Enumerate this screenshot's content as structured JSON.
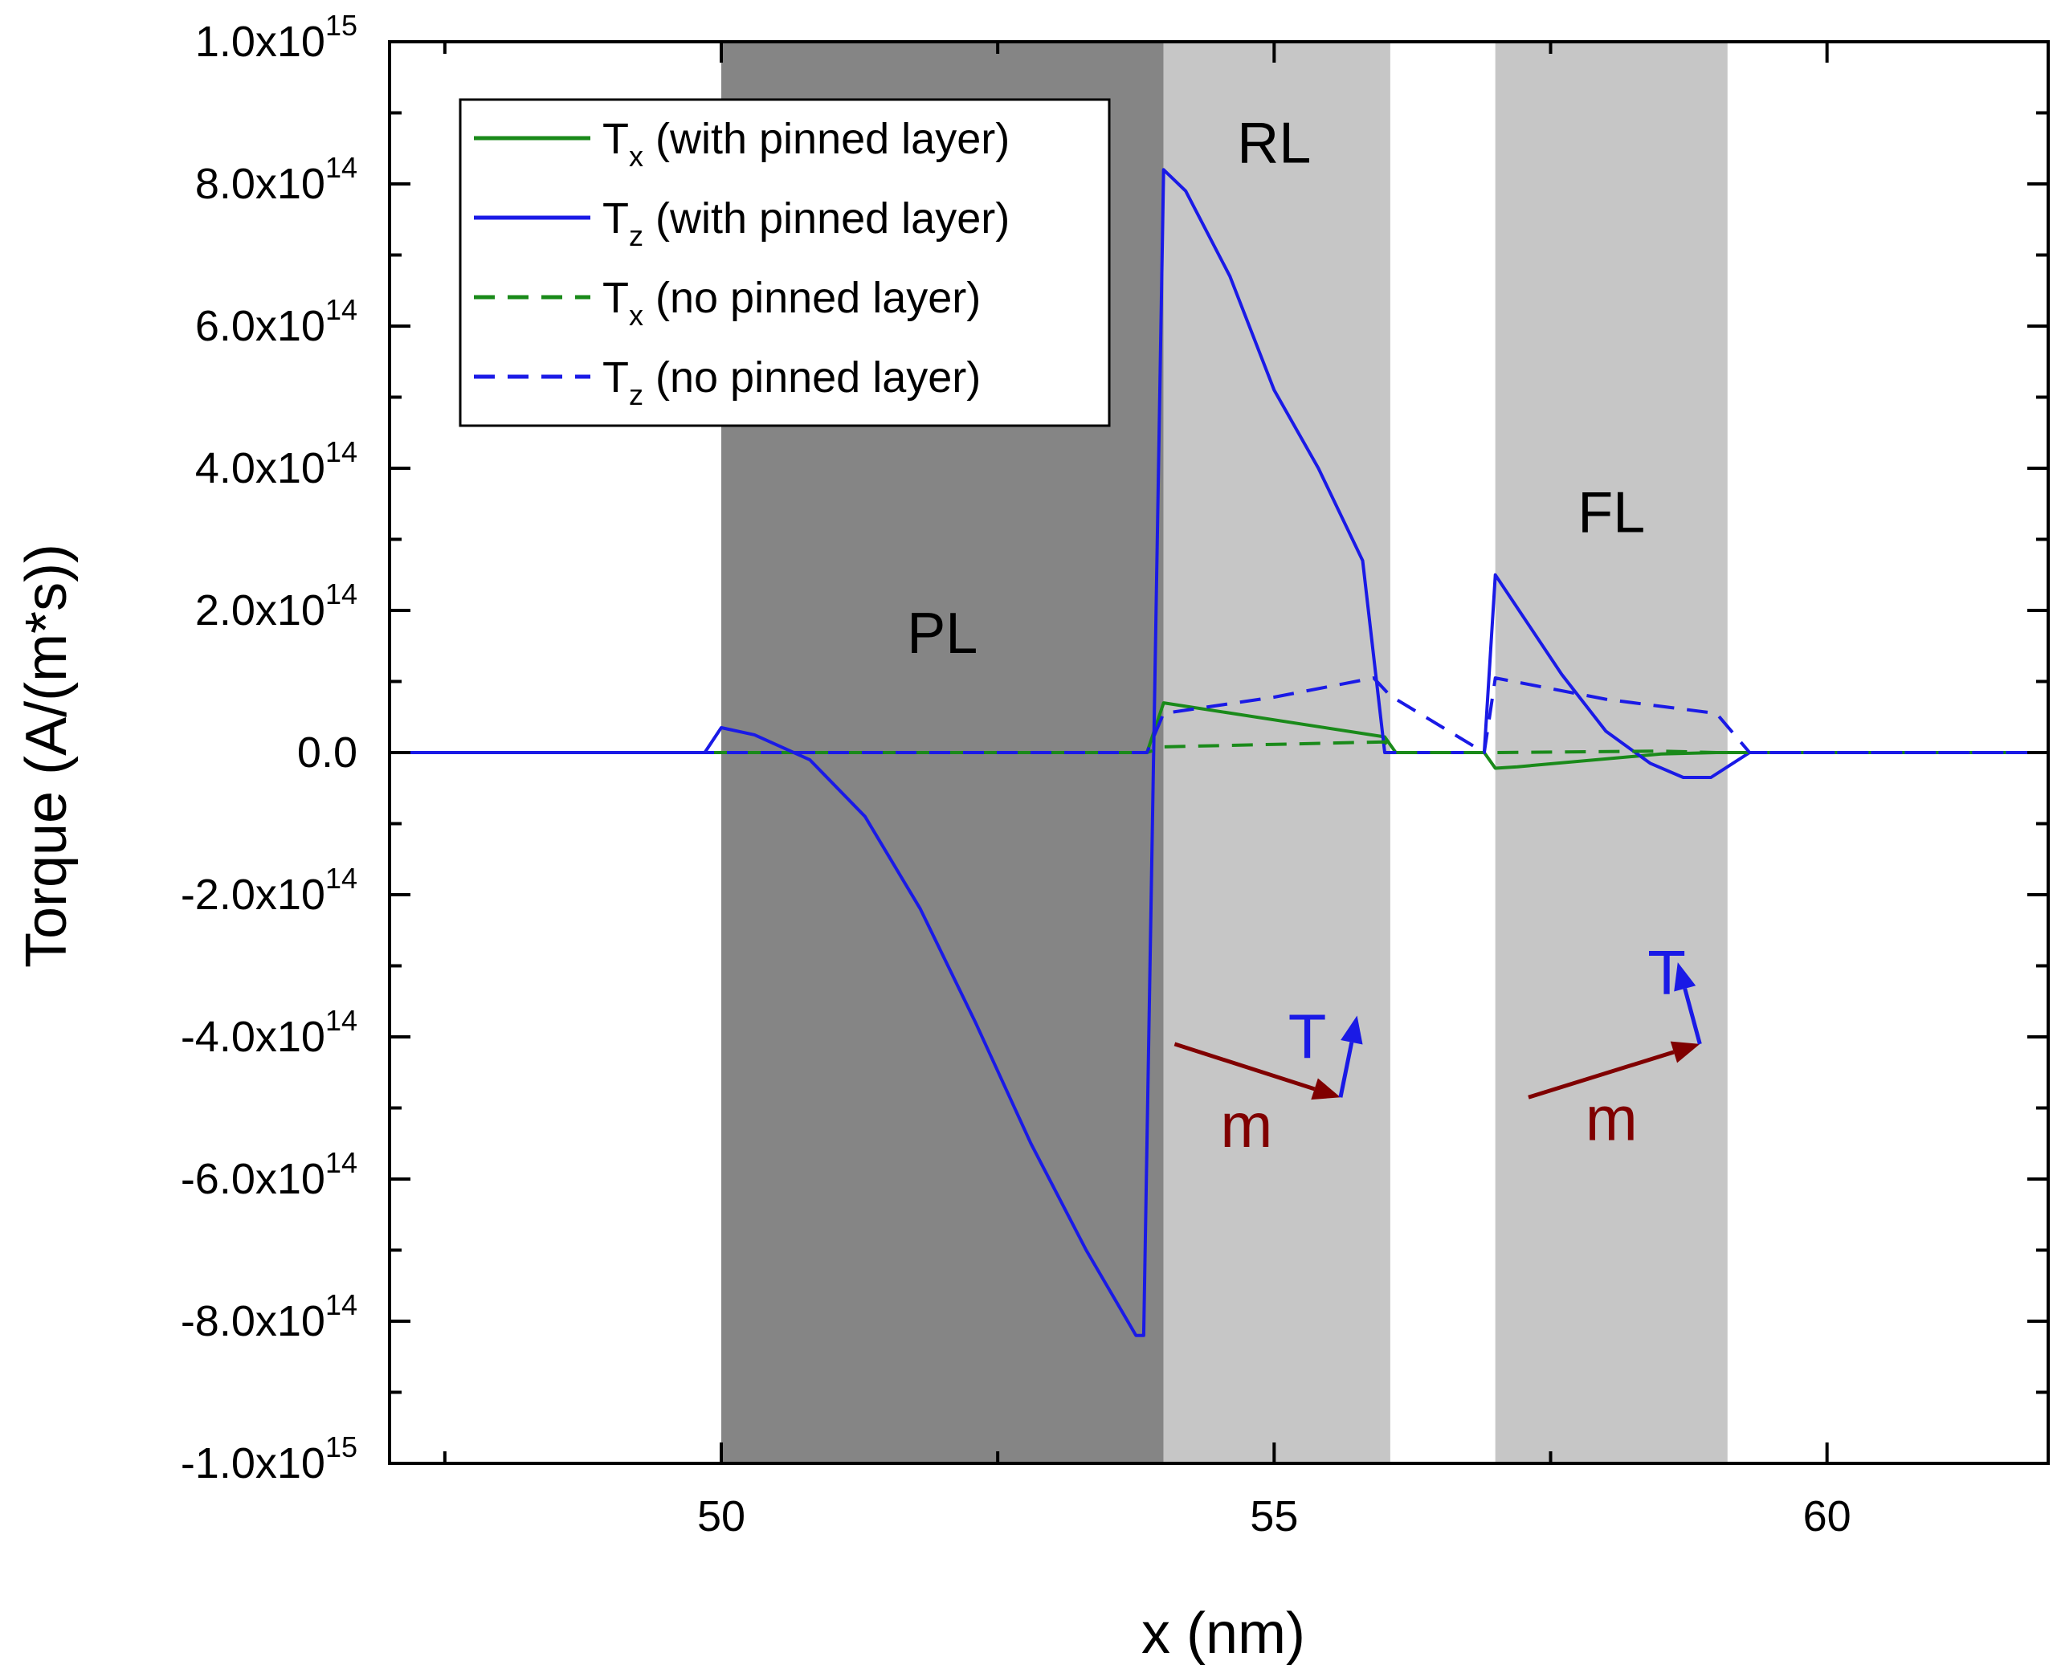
{
  "chart_data": {
    "type": "line",
    "xlabel": "x (nm)",
    "ylabel": "Torque (A/(m*s))",
    "xlim": [
      47,
      62
    ],
    "ylim": [
      -1000000000000000.0,
      1000000000000000.0
    ],
    "x_ticks": [
      {
        "value": 50,
        "label": "50"
      },
      {
        "value": 55,
        "label": "55"
      },
      {
        "value": 60,
        "label": "60"
      }
    ],
    "y_ticks": [
      {
        "value": 1000000000000000.0,
        "mant": "1.0x10",
        "exp": "15"
      },
      {
        "value": 800000000000000.0,
        "mant": "8.0x10",
        "exp": "14"
      },
      {
        "value": 600000000000000.0,
        "mant": "6.0x10",
        "exp": "14"
      },
      {
        "value": 400000000000000.0,
        "mant": "4.0x10",
        "exp": "14"
      },
      {
        "value": 200000000000000.0,
        "mant": "2.0x10",
        "exp": "14"
      },
      {
        "value": 0,
        "mant": "0.0",
        "exp": ""
      },
      {
        "value": -200000000000000.0,
        "mant": "-2.0x10",
        "exp": "14"
      },
      {
        "value": -400000000000000.0,
        "mant": "-4.0x10",
        "exp": "14"
      },
      {
        "value": -600000000000000.0,
        "mant": "-6.0x10",
        "exp": "14"
      },
      {
        "value": -800000000000000.0,
        "mant": "-8.0x10",
        "exp": "14"
      },
      {
        "value": -1000000000000000.0,
        "mant": "-1.0x10",
        "exp": "15"
      }
    ],
    "regions": [
      {
        "name": "PL",
        "label": "PL",
        "x0": 50.0,
        "x1": 54.0,
        "color": "#858585",
        "label_x": 52.0,
        "label_y": 140000000000000.0
      },
      {
        "name": "RL",
        "label": "RL",
        "x0": 54.0,
        "x1": 56.05,
        "color": "#c6c6c6",
        "label_x": 55.0,
        "label_y": 830000000000000.0
      },
      {
        "name": "FL",
        "label": "FL",
        "x0": 57.0,
        "x1": 59.1,
        "color": "#c6c6c6",
        "label_x": 58.05,
        "label_y": 310000000000000.0
      }
    ],
    "series": [
      {
        "name": "Tx (with pinned layer)",
        "label_base": "T",
        "label_sub": "x",
        "label_rest": " (with pinned layer)",
        "color": "#1a8a1a",
        "dash": "solid",
        "x": [
          47,
          53.85,
          54.0,
          56.0,
          56.1,
          56.9,
          57.0,
          57.2,
          58.5,
          59.0,
          59.3,
          62
        ],
        "y": [
          0,
          0,
          70000000000000.0,
          22000000000000.0,
          0,
          0,
          -22000000000000.0,
          -20000000000000.0,
          -2000000000000.0,
          0,
          0,
          0
        ]
      },
      {
        "name": "Tz (with pinned layer)",
        "label_base": "T",
        "label_sub": "z",
        "label_rest": " (with pinned layer)",
        "color": "#1a1ae6",
        "dash": "solid",
        "x": [
          47,
          49.85,
          50.0,
          50.3,
          50.8,
          51.3,
          51.8,
          52.3,
          52.8,
          53.3,
          53.6,
          53.75,
          53.82,
          54.0,
          54.2,
          54.6,
          55.0,
          55.4,
          55.8,
          56.0,
          56.1,
          56.9,
          57.0,
          57.3,
          57.6,
          58.0,
          58.4,
          58.7,
          58.95,
          59.3,
          62
        ],
        "y": [
          0,
          0,
          35000000000000.0,
          25000000000000.0,
          -10000000000000.0,
          -90000000000000.0,
          -220000000000000.0,
          -380000000000000.0,
          -550000000000000.0,
          -700000000000000.0,
          -780000000000000.0,
          -820000000000000.0,
          -820000000000000.0,
          820000000000000.0,
          790000000000000.0,
          670000000000000.0,
          510000000000000.0,
          400000000000000.0,
          270000000000000.0,
          0,
          0,
          0,
          250000000000000.0,
          180000000000000.0,
          110000000000000.0,
          30000000000000.0,
          -15000000000000.0,
          -35000000000000.0,
          -35000000000000.0,
          0,
          0
        ]
      },
      {
        "name": "Tx (no pinned layer)",
        "label_base": "T",
        "label_sub": "x",
        "label_rest": " (no pinned layer)",
        "color": "#1a8a1a",
        "dash": "dashed",
        "x": [
          47,
          53.85,
          54.0,
          56.0,
          56.1,
          56.9,
          57.0,
          58.5,
          59.0,
          59.3,
          62
        ],
        "y": [
          0,
          0,
          8000000000000.0,
          15000000000000.0,
          0,
          0,
          0,
          2000000000000.0,
          0,
          0,
          0
        ]
      },
      {
        "name": "Tz (no pinned layer)",
        "label_base": "T",
        "label_sub": "z",
        "label_rest": " (no pinned layer)",
        "color": "#1a1ae6",
        "dash": "dashed",
        "x": [
          47,
          53.85,
          54.0,
          55.0,
          55.9,
          56.05,
          56.9,
          57.0,
          58.0,
          59.0,
          59.3,
          62
        ],
        "y": [
          0,
          0,
          55000000000000.0,
          78000000000000.0,
          105000000000000.0,
          80000000000000.0,
          0,
          105000000000000.0,
          75000000000000.0,
          55000000000000.0,
          0,
          0
        ]
      }
    ]
  },
  "annotations": [
    {
      "name": "rl",
      "m_label": "m",
      "t_label": "T",
      "m_start": [
        54.1,
        -410000000000000.0
      ],
      "m_end": [
        55.6,
        -485000000000000.0
      ],
      "t_end": [
        55.75,
        -370000000000000.0
      ],
      "m_text_at": [
        54.75,
        -555000000000000.0
      ],
      "t_text_at": [
        55.3,
        -430000000000000.0
      ]
    },
    {
      "name": "fl",
      "m_label": "m",
      "t_label": "T",
      "m_start": [
        57.3,
        -485000000000000.0
      ],
      "m_end": [
        58.85,
        -410000000000000.0
      ],
      "t_end": [
        58.65,
        -295000000000000.0
      ],
      "m_text_at": [
        58.05,
        -545000000000000.0
      ],
      "t_text_at": [
        58.55,
        -340000000000000.0
      ]
    }
  ],
  "colors": {
    "m_arrow": "#800000",
    "t_arrow": "#1a1ae6",
    "axis": "#000000"
  }
}
